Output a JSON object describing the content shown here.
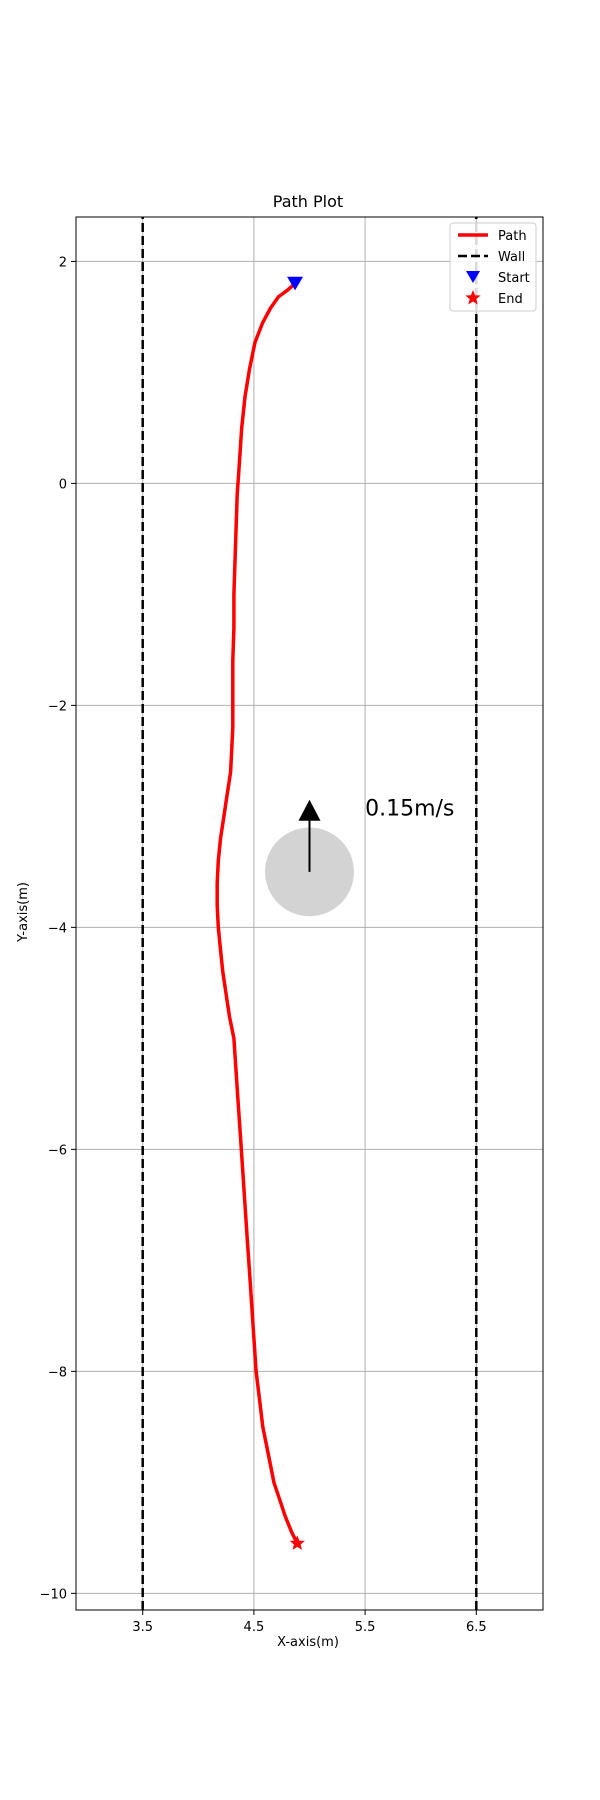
{
  "chart_data": {
    "type": "line",
    "title": "Path Plot",
    "xlabel": "X-axis(m)",
    "ylabel": "Y-axis(m)",
    "xlim": [
      2.9,
      7.1
    ],
    "ylim": [
      -10.15,
      2.4
    ],
    "xticks": [
      3.5,
      4.5,
      5.5,
      6.5
    ],
    "yticks": [
      2,
      0,
      -2,
      -4,
      -6,
      -8,
      -10
    ],
    "grid": true,
    "legend_placement": "top-right",
    "series": [
      {
        "name": "Path",
        "color": "#ff0000",
        "style": "solid",
        "x": [
          4.87,
          4.8,
          4.72,
          4.65,
          4.58,
          4.51,
          4.46,
          4.42,
          4.39,
          4.37,
          4.35,
          4.34,
          4.33,
          4.32,
          4.32,
          4.31,
          4.31,
          4.31,
          4.31,
          4.3,
          4.29,
          4.26,
          4.23,
          4.2,
          4.18,
          4.17,
          4.17,
          4.18,
          4.2,
          4.22,
          4.25,
          4.28,
          4.32,
          4.34,
          4.36,
          4.38,
          4.4,
          4.42,
          4.44,
          4.46,
          4.48,
          4.5,
          4.52,
          4.55,
          4.58,
          4.63,
          4.68,
          4.73,
          4.78,
          4.84,
          4.89
        ],
        "y": [
          1.8,
          1.74,
          1.68,
          1.58,
          1.45,
          1.27,
          1.03,
          0.78,
          0.5,
          0.2,
          -0.1,
          -0.4,
          -0.7,
          -1.0,
          -1.3,
          -1.6,
          -1.8,
          -2.0,
          -2.2,
          -2.4,
          -2.6,
          -2.8,
          -3.0,
          -3.2,
          -3.4,
          -3.6,
          -3.8,
          -4.0,
          -4.2,
          -4.4,
          -4.6,
          -4.8,
          -5.0,
          -5.3,
          -5.6,
          -5.9,
          -6.2,
          -6.5,
          -6.8,
          -7.1,
          -7.4,
          -7.7,
          -8.0,
          -8.25,
          -8.5,
          -8.75,
          -9.0,
          -9.15,
          -9.3,
          -9.45,
          -9.55
        ]
      },
      {
        "name": "Wall",
        "color": "#000000",
        "style": "dashed",
        "x": [
          3.5,
          3.5
        ],
        "y": [
          -10.15,
          2.4
        ]
      },
      {
        "name": "Wall (right)",
        "color": "#000000",
        "style": "dashed",
        "x": [
          6.5,
          6.5
        ],
        "y": [
          -10.15,
          2.4
        ]
      }
    ],
    "markers": [
      {
        "name": "Start",
        "shape": "triangle-down",
        "color": "#0000ff",
        "x": 4.87,
        "y": 1.8
      },
      {
        "name": "End",
        "shape": "star",
        "color": "#ff0000",
        "x": 4.89,
        "y": -9.55
      }
    ],
    "legend": [
      {
        "label": "Path",
        "kind": "line-solid",
        "color": "#ff0000"
      },
      {
        "label": "Wall",
        "kind": "line-dashed",
        "color": "#000000"
      },
      {
        "label": "Start",
        "kind": "triangle-down",
        "color": "#0000ff"
      },
      {
        "label": "End",
        "kind": "star",
        "color": "#ff0000"
      }
    ],
    "obstacle": {
      "center": [
        5.0,
        -3.5
      ],
      "radius": 0.4,
      "color": "#d3d3d3",
      "arrow_end": [
        5.0,
        -2.85
      ],
      "velocity_label": "0.15m/s"
    }
  }
}
